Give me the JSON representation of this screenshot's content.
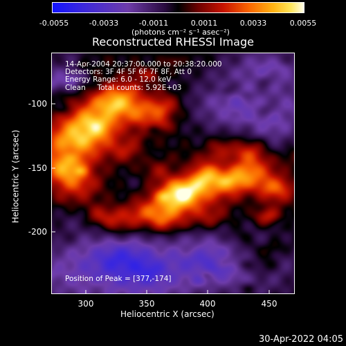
{
  "colorbar": {
    "ticks": [
      "-0.0055",
      "-0.0033",
      "-0.0011",
      "0.0011",
      "0.0033",
      "0.0055"
    ],
    "unit_text": "(photons cm⁻² s⁻¹ asec⁻²)"
  },
  "title": "Reconstructed RHESSI Image",
  "annotations": {
    "line1": "14-Apr-2004 20:37:00.000 to 20:38:20.000",
    "line2": "Detectors: 3F 4F 5F 6F 7F 8F, Att 0",
    "line3": "Energy Range: 6.0 - 12.0 keV",
    "line4": "Clean     Total counts: 5.92E+03",
    "peak": "Position of Peak = [377,-174]"
  },
  "axes": {
    "xlabel": "Heliocentric X (arcsec)",
    "ylabel": "Heliocentric Y (arcsec)",
    "xticks": [
      "300",
      "350",
      "400",
      "450"
    ],
    "yticks": [
      "-100",
      "-150",
      "-200"
    ]
  },
  "footer_date": "30-Apr-2022 04:05",
  "chart_data": {
    "type": "heatmap",
    "title": "Reconstructed RHESSI Image",
    "xlabel": "Heliocentric X (arcsec)",
    "ylabel": "Heliocentric Y (arcsec)",
    "xlim": [
      272,
      466
    ],
    "ylim": [
      -250,
      -58
    ],
    "xticks": [
      300,
      350,
      400,
      450
    ],
    "yticks": [
      -100,
      -150,
      -200
    ],
    "colorbar_range": [
      -0.0055,
      0.0055
    ],
    "colorbar_ticks": [
      -0.0055,
      -0.0033,
      -0.0011,
      0.0011,
      0.0033,
      0.0055
    ],
    "peak_position": [
      377,
      -174
    ]
  }
}
